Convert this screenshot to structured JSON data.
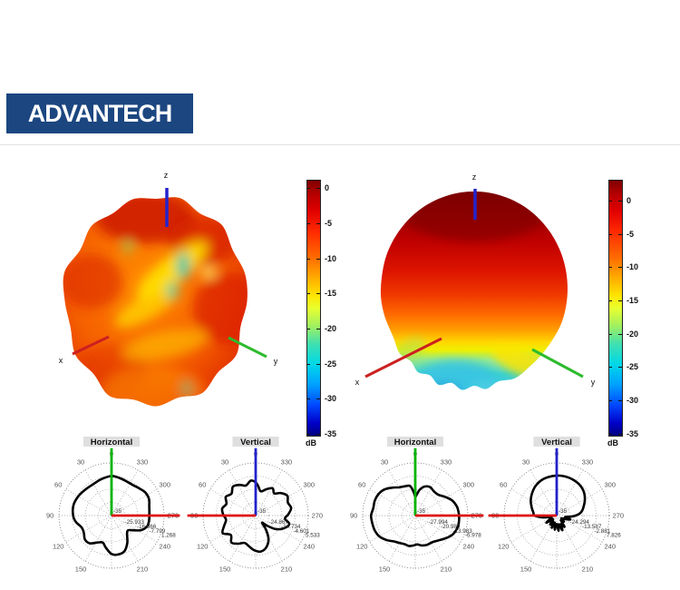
{
  "logo": {
    "text": "ADVANTECH",
    "bg_color": "#1b4680",
    "text_color": "#ffffff"
  },
  "colors": {
    "axis_x_red": "#cc2020",
    "axis_y_green": "#2dbb2d",
    "axis_z_blue": "#2424cc",
    "polar_axis_red": "#dd1111",
    "polar_axis_green": "#00b300",
    "polar_axis_blue": "#2222cc",
    "pattern_curve": "#000000",
    "grid": "#999999",
    "tick_text": "#555555",
    "title_bg": "#dfdfdf",
    "divider": "#e2e2e2"
  },
  "chart_data": [
    {
      "type": "3d-surface",
      "id": "surface-left",
      "description": "3D antenna radiation pattern, irregular multi-lobed blob, mostly 0 to -10 dB (red/orange) with small -15 to -20 dB (yellow/teal) patches",
      "axes": {
        "x": "x",
        "y": "y",
        "z": "z"
      },
      "colorbar": {
        "unit": "dB",
        "tick_labels": [
          "0",
          "-5",
          "-10",
          "-15",
          "-20",
          "-25",
          "-30",
          "-35"
        ],
        "range": [
          1,
          -35
        ]
      }
    },
    {
      "type": "3d-surface",
      "id": "surface-right",
      "description": "3D antenna radiation pattern, smooth dome: dark red (0 dB) on top grading to yellow then cyan (-20 dB) lumpy underside",
      "axes": {
        "x": "x",
        "y": "y",
        "z": "z"
      },
      "colorbar": {
        "unit": "dB",
        "tick_labels": [
          "0",
          "-5",
          "-10",
          "-15",
          "-20",
          "-25",
          "-30",
          "-35"
        ],
        "range": [
          3,
          -35
        ]
      }
    },
    {
      "type": "polar",
      "id": "polar-1",
      "title": "Horizontal",
      "angle_tick_labels": [
        "0",
        "30",
        "60",
        "90",
        "120",
        "150",
        "210",
        "240",
        "270",
        "300",
        "330"
      ],
      "radial_tick_labels": [
        "-35",
        "-25.933",
        "-16.866",
        "-7.799",
        "1.268"
      ],
      "radial_range_db": [
        -35,
        1.268
      ],
      "up_axis_color_key": "polar_axis_green",
      "side_axis": "right",
      "samples_deg_rfrac": [
        [
          0,
          0.75
        ],
        [
          15,
          0.72
        ],
        [
          30,
          0.69
        ],
        [
          45,
          0.7
        ],
        [
          60,
          0.73
        ],
        [
          75,
          0.75
        ],
        [
          90,
          0.73
        ],
        [
          100,
          0.69
        ],
        [
          112,
          0.61
        ],
        [
          122,
          0.62
        ],
        [
          132,
          0.68
        ],
        [
          142,
          0.67
        ],
        [
          152,
          0.58
        ],
        [
          162,
          0.54
        ],
        [
          170,
          0.62
        ],
        [
          180,
          0.73
        ],
        [
          190,
          0.75
        ],
        [
          200,
          0.72
        ],
        [
          210,
          0.6
        ],
        [
          220,
          0.46
        ],
        [
          228,
          0.42
        ],
        [
          236,
          0.5
        ],
        [
          244,
          0.63
        ],
        [
          254,
          0.71
        ],
        [
          264,
          0.72
        ],
        [
          274,
          0.72
        ],
        [
          284,
          0.74
        ],
        [
          294,
          0.78
        ],
        [
          304,
          0.78
        ],
        [
          314,
          0.74
        ],
        [
          324,
          0.71
        ],
        [
          336,
          0.71
        ],
        [
          348,
          0.73
        ]
      ]
    },
    {
      "type": "polar",
      "id": "polar-2",
      "title": "Vertical",
      "angle_tick_labels": [
        "0",
        "30",
        "60",
        "90",
        "120",
        "150",
        "210",
        "240",
        "270",
        "300",
        "330"
      ],
      "radial_tick_labels": [
        "-35",
        "-24.867",
        "-14.734",
        "-4.601",
        "5.533"
      ],
      "radial_range_db": [
        -35,
        5.533
      ],
      "up_axis_color_key": "polar_axis_blue",
      "side_axis": "left",
      "samples_deg_rfrac": [
        [
          0,
          0.63
        ],
        [
          8,
          0.67
        ],
        [
          18,
          0.6
        ],
        [
          28,
          0.66
        ],
        [
          38,
          0.7
        ],
        [
          48,
          0.62
        ],
        [
          58,
          0.67
        ],
        [
          68,
          0.6
        ],
        [
          78,
          0.65
        ],
        [
          88,
          0.62
        ],
        [
          98,
          0.57
        ],
        [
          108,
          0.63
        ],
        [
          118,
          0.71
        ],
        [
          128,
          0.6
        ],
        [
          138,
          0.69
        ],
        [
          148,
          0.63
        ],
        [
          158,
          0.56
        ],
        [
          168,
          0.6
        ],
        [
          178,
          0.66
        ],
        [
          188,
          0.69
        ],
        [
          198,
          0.64
        ],
        [
          208,
          0.52
        ],
        [
          216,
          0.34
        ],
        [
          222,
          0.18
        ],
        [
          228,
          0.28
        ],
        [
          236,
          0.46
        ],
        [
          246,
          0.59
        ],
        [
          256,
          0.66
        ],
        [
          264,
          0.56
        ],
        [
          272,
          0.62
        ],
        [
          282,
          0.69
        ],
        [
          292,
          0.66
        ],
        [
          302,
          0.71
        ],
        [
          312,
          0.64
        ],
        [
          320,
          0.55
        ],
        [
          328,
          0.61
        ],
        [
          338,
          0.54
        ],
        [
          348,
          0.47
        ],
        [
          355,
          0.56
        ]
      ]
    },
    {
      "type": "polar",
      "id": "polar-3",
      "title": "Horizontal",
      "angle_tick_labels": [
        "0",
        "30",
        "60",
        "90",
        "120",
        "150",
        "210",
        "240",
        "270",
        "300",
        "330"
      ],
      "radial_tick_labels": [
        "-35",
        "-27.994",
        "-20.989",
        "-13.983",
        "-6.978"
      ],
      "radial_range_db": [
        -35,
        -6.978
      ],
      "up_axis_color_key": "polar_axis_green",
      "side_axis": "right",
      "samples_deg_rfrac": [
        [
          0,
          0.36
        ],
        [
          4,
          0.45
        ],
        [
          10,
          0.57
        ],
        [
          20,
          0.59
        ],
        [
          30,
          0.62
        ],
        [
          40,
          0.69
        ],
        [
          50,
          0.77
        ],
        [
          60,
          0.81
        ],
        [
          70,
          0.82
        ],
        [
          80,
          0.81
        ],
        [
          90,
          0.84
        ],
        [
          100,
          0.83
        ],
        [
          110,
          0.82
        ],
        [
          120,
          0.79
        ],
        [
          130,
          0.72
        ],
        [
          140,
          0.64
        ],
        [
          150,
          0.6
        ],
        [
          160,
          0.58
        ],
        [
          168,
          0.59
        ],
        [
          176,
          0.57
        ],
        [
          184,
          0.55
        ],
        [
          192,
          0.58
        ],
        [
          202,
          0.6
        ],
        [
          212,
          0.6
        ],
        [
          222,
          0.64
        ],
        [
          232,
          0.71
        ],
        [
          242,
          0.79
        ],
        [
          252,
          0.83
        ],
        [
          262,
          0.84
        ],
        [
          272,
          0.83
        ],
        [
          282,
          0.81
        ],
        [
          292,
          0.76
        ],
        [
          302,
          0.67
        ],
        [
          312,
          0.59
        ],
        [
          322,
          0.58
        ],
        [
          332,
          0.61
        ],
        [
          342,
          0.58
        ],
        [
          350,
          0.5
        ],
        [
          356,
          0.4
        ]
      ]
    },
    {
      "type": "polar",
      "id": "polar-4",
      "title": "Vertical",
      "angle_tick_labels": [
        "0",
        "30",
        "60",
        "90",
        "120",
        "150",
        "210",
        "240",
        "270",
        "300",
        "330"
      ],
      "radial_tick_labels": [
        "-35",
        "-24.294",
        "-13.587",
        "-2.881",
        "7.826"
      ],
      "radial_range_db": [
        -35,
        7.826
      ],
      "up_axis_color_key": "polar_axis_blue",
      "side_axis": "left",
      "samples_deg_rfrac": [
        [
          0,
          0.76
        ],
        [
          12,
          0.75
        ],
        [
          24,
          0.73
        ],
        [
          36,
          0.69
        ],
        [
          48,
          0.63
        ],
        [
          60,
          0.57
        ],
        [
          72,
          0.5
        ],
        [
          82,
          0.45
        ],
        [
          90,
          0.42
        ],
        [
          97,
          0.28
        ],
        [
          103,
          0.13
        ],
        [
          110,
          0.1
        ],
        [
          117,
          0.14
        ],
        [
          124,
          0.24
        ],
        [
          130,
          0.15
        ],
        [
          137,
          0.1
        ],
        [
          144,
          0.21
        ],
        [
          151,
          0.13
        ],
        [
          158,
          0.25
        ],
        [
          165,
          0.14
        ],
        [
          172,
          0.27
        ],
        [
          180,
          0.16
        ],
        [
          187,
          0.29
        ],
        [
          194,
          0.17
        ],
        [
          201,
          0.3
        ],
        [
          208,
          0.18
        ],
        [
          215,
          0.26
        ],
        [
          222,
          0.12
        ],
        [
          230,
          0.18
        ],
        [
          238,
          0.1
        ],
        [
          247,
          0.17
        ],
        [
          254,
          0.27
        ],
        [
          260,
          0.16
        ],
        [
          266,
          0.28
        ],
        [
          271,
          0.38
        ],
        [
          276,
          0.45
        ],
        [
          282,
          0.5
        ],
        [
          290,
          0.55
        ],
        [
          300,
          0.62
        ],
        [
          312,
          0.69
        ],
        [
          324,
          0.73
        ],
        [
          336,
          0.75
        ],
        [
          348,
          0.76
        ]
      ]
    }
  ]
}
